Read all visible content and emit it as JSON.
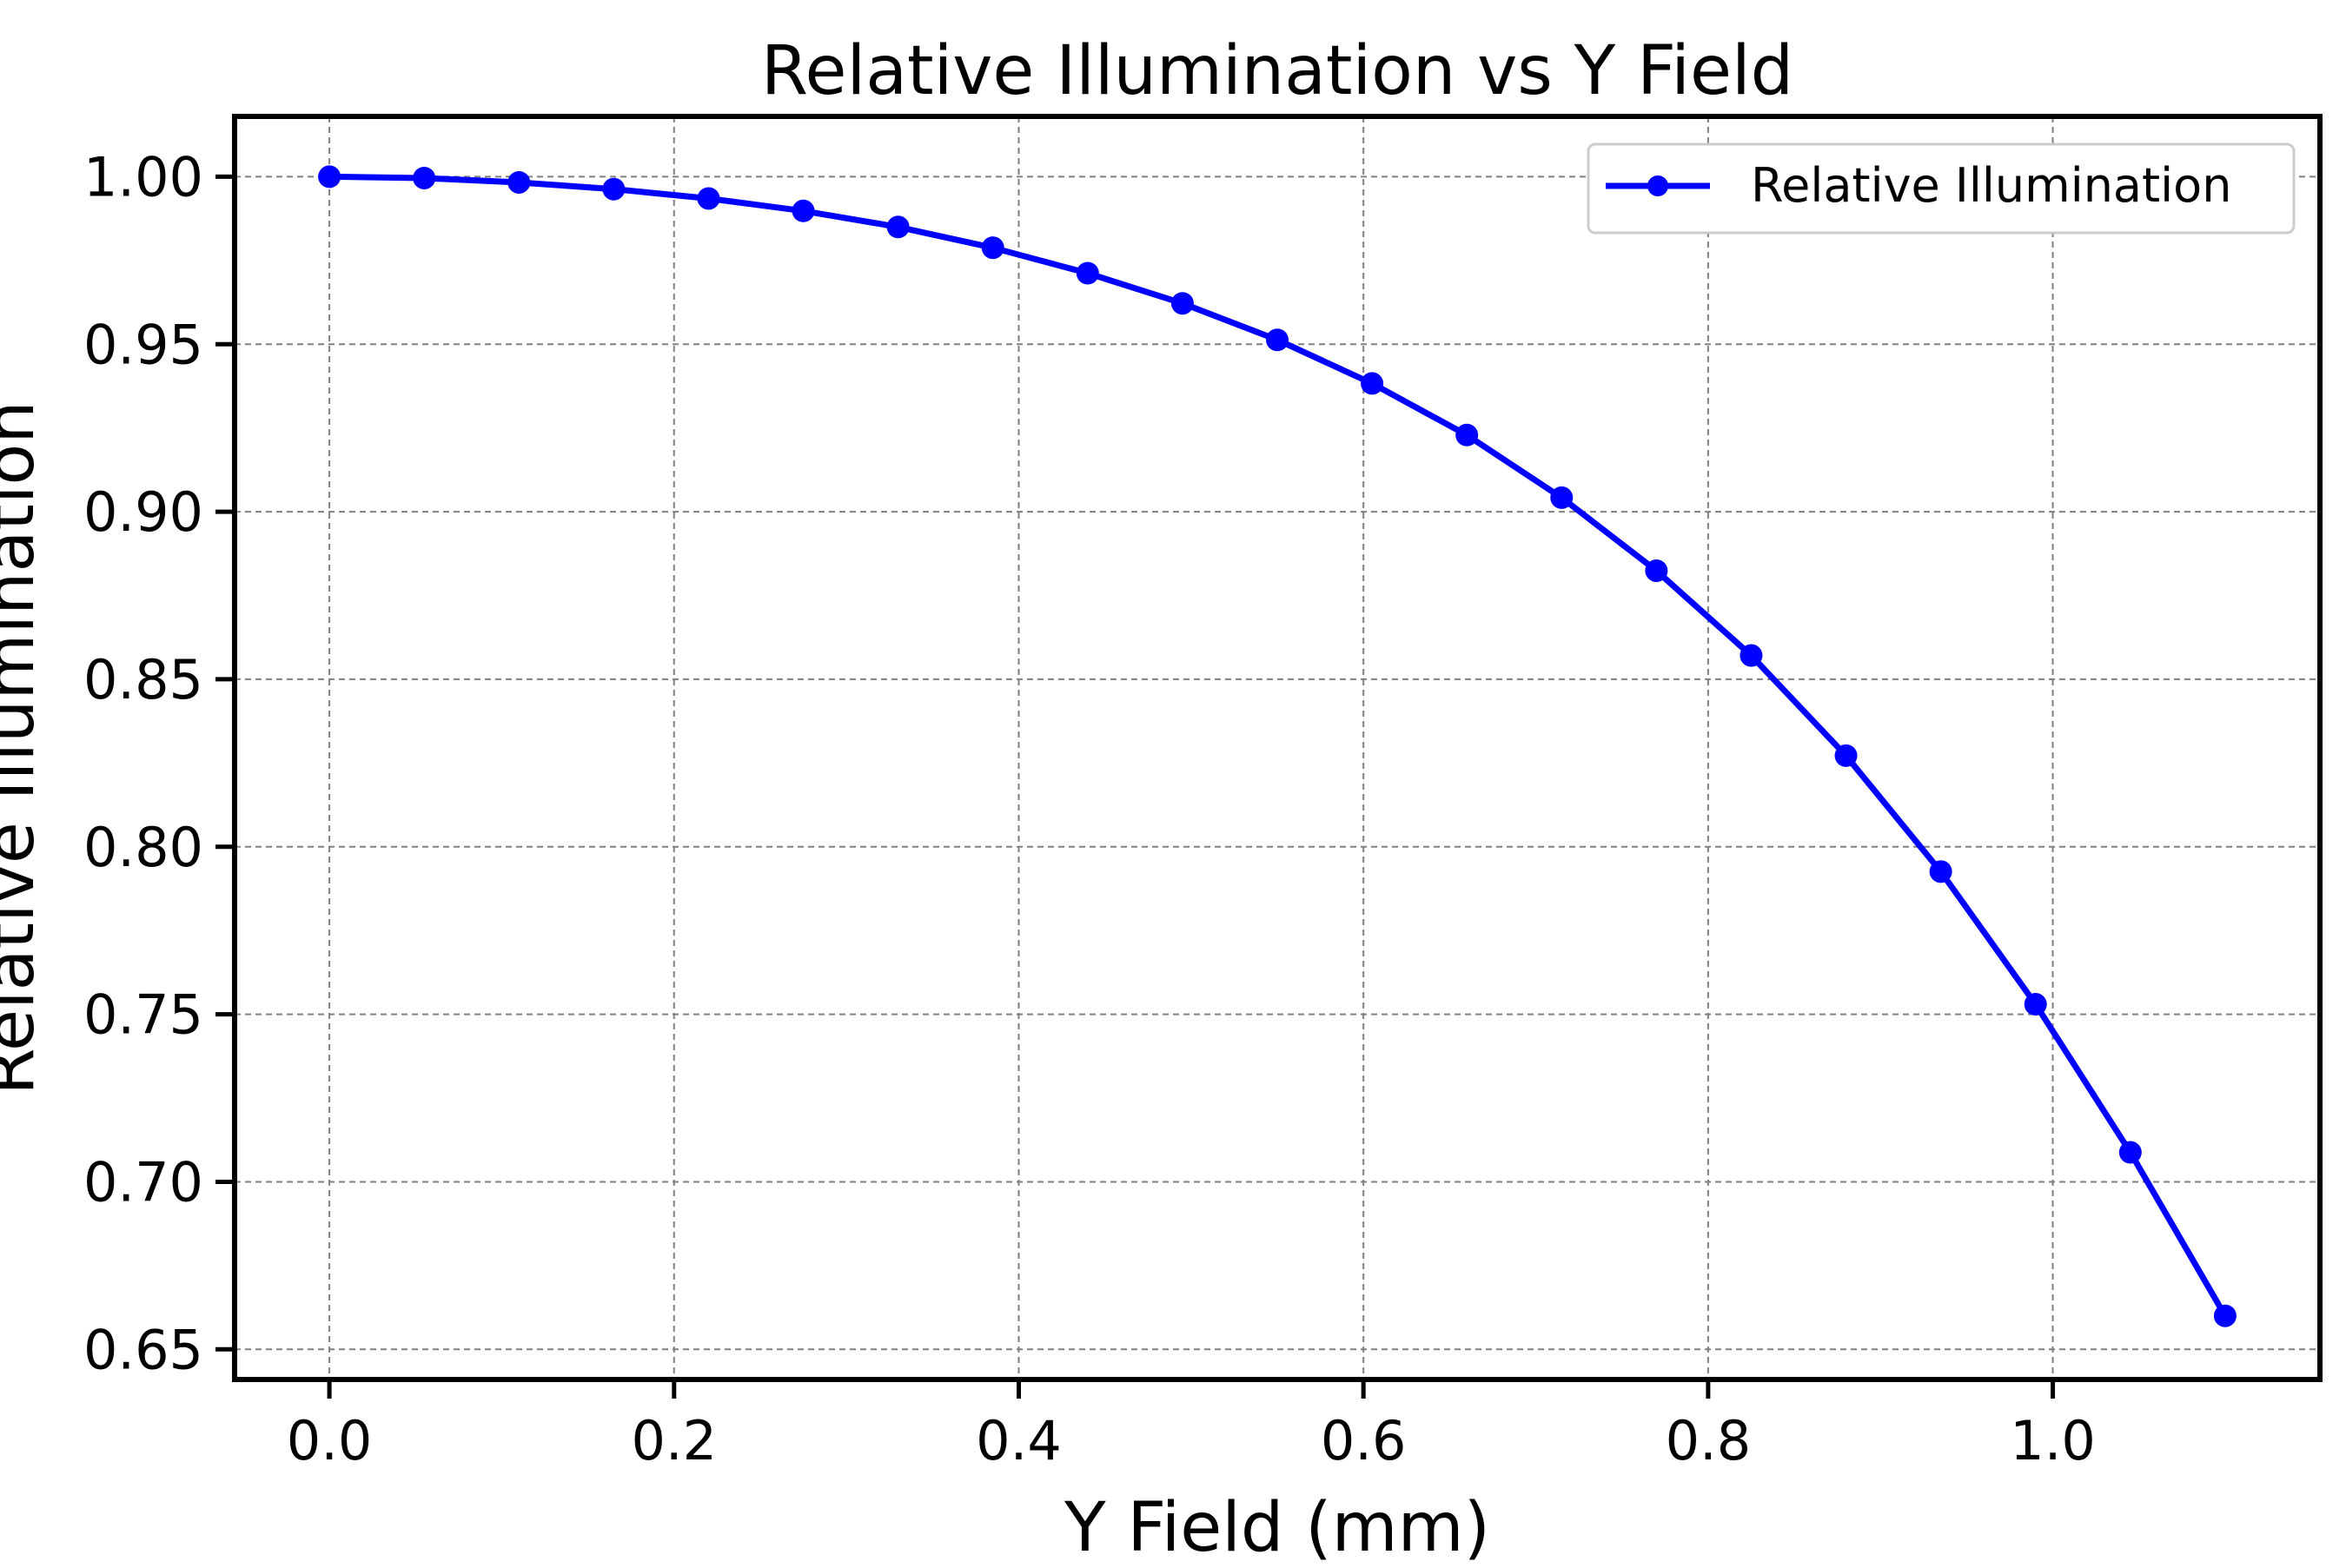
{
  "chart_data": {
    "type": "line",
    "title": "Relative Illumination vs Y Field",
    "xlabel": "Y Field (mm)",
    "ylabel": "Relative Illumination",
    "xlim": [
      -0.055,
      1.155
    ],
    "ylim": [
      0.641,
      1.018
    ],
    "xticks": [
      0.0,
      0.2,
      0.4,
      0.6,
      0.8,
      1.0
    ],
    "xtick_labels": [
      "0.0",
      "0.2",
      "0.4",
      "0.6",
      "0.8",
      "1.0"
    ],
    "yticks": [
      0.65,
      0.7,
      0.75,
      0.8,
      0.85,
      0.9,
      0.95,
      1.0
    ],
    "ytick_labels": [
      "0.65",
      "0.70",
      "0.75",
      "0.80",
      "0.85",
      "0.90",
      "0.95",
      "1.00"
    ],
    "grid": true,
    "legend_position": "top-right",
    "series": [
      {
        "name": "Relative Illumination",
        "color": "#0000ff",
        "marker": "circle",
        "x": [
          0.0,
          0.055,
          0.11,
          0.165,
          0.22,
          0.275,
          0.33,
          0.385,
          0.44,
          0.495,
          0.55,
          0.605,
          0.66,
          0.715,
          0.77,
          0.825,
          0.88,
          0.935,
          0.99,
          1.045,
          1.1
        ],
        "y": [
          1.0,
          0.9996,
          0.9983,
          0.9963,
          0.9935,
          0.9898,
          0.985,
          0.9788,
          0.9712,
          0.9622,
          0.9513,
          0.9383,
          0.9229,
          0.9042,
          0.8824,
          0.8571,
          0.8272,
          0.7926,
          0.753,
          0.7088,
          0.66
        ]
      }
    ]
  }
}
